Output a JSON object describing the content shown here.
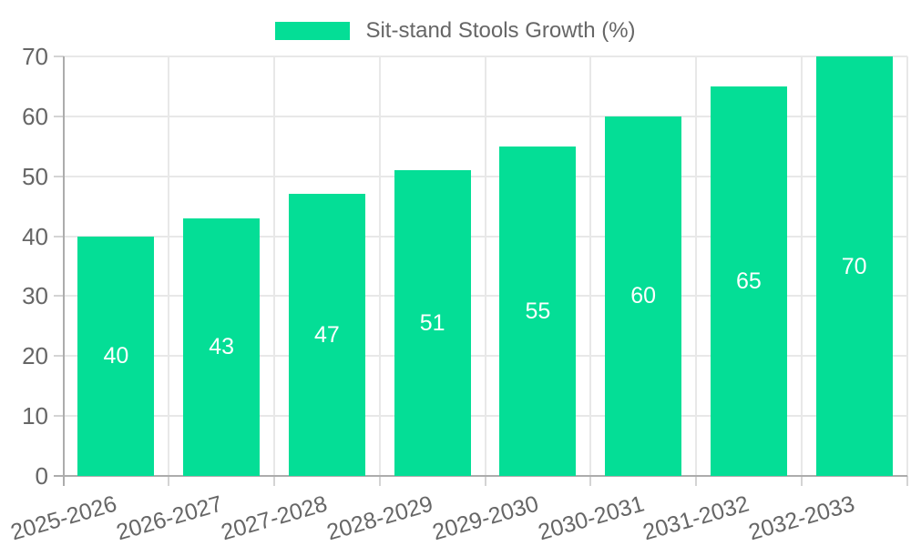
{
  "legend": {
    "label": "Sit-stand Stools Growth (%)",
    "position": "top-center"
  },
  "chart_data": {
    "type": "bar",
    "title": "Sit-stand Stools Growth (%)",
    "categories": [
      "2025-2026",
      "2026-2027",
      "2027-2028",
      "2028-2029",
      "2029-2030",
      "2030-2031",
      "2031-2032",
      "2032-2033"
    ],
    "values": [
      40,
      43,
      47,
      51,
      55,
      60,
      65,
      70
    ],
    "bar_labels": [
      "40",
      "43",
      "47",
      "51",
      "55",
      "60",
      "65",
      "70"
    ],
    "xlabel": "",
    "ylabel": "",
    "ylim": [
      0,
      70
    ],
    "yticks": [
      0,
      10,
      20,
      30,
      40,
      50,
      60,
      70
    ],
    "grid": true,
    "x_label_rotation_deg": -16,
    "colors": {
      "bar": "#04DE96",
      "bar_label": "#FFFFFF",
      "axis_text": "#666666",
      "grid": "#E8E8E8",
      "tick": "#D4D4D4",
      "axis_line": "#ACACAC",
      "background": "#FFFFFF"
    }
  }
}
